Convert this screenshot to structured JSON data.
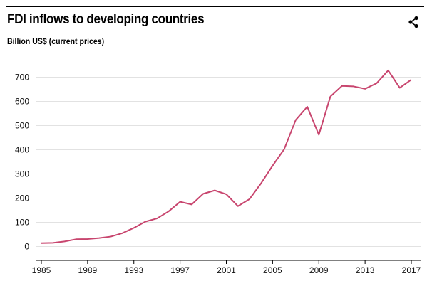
{
  "header": {
    "title": "FDI inflows to developing countries",
    "subtitle": "Billion US$ (current prices)",
    "share_icon": "share-icon"
  },
  "chart_data": {
    "type": "line",
    "title": "FDI inflows to developing countries",
    "ylabel": "Billion US$ (current prices)",
    "xlabel": "",
    "x_ticks": [
      "1985",
      "1989",
      "1993",
      "1997",
      "2001",
      "2005",
      "2009",
      "2013",
      "2017"
    ],
    "y_ticks": [
      "0",
      "100",
      "200",
      "300",
      "400",
      "500",
      "600",
      "700"
    ],
    "xlim": [
      1985,
      2017
    ],
    "ylim": [
      0,
      700
    ],
    "grid": "horizontal",
    "line_color": "#c8456e",
    "series": [
      {
        "x": [
          1985,
          1986,
          1987,
          1988,
          1989,
          1990,
          1991,
          1992,
          1993,
          1994,
          1995,
          1996,
          1997,
          1998,
          1999,
          2000,
          2001,
          2002,
          2003,
          2004,
          2005,
          2006,
          2007,
          2008,
          2009,
          2010,
          2011,
          2012,
          2013,
          2014,
          2015,
          2016,
          2017
        ],
        "values": [
          14,
          15,
          21,
          30,
          31,
          35,
          41,
          55,
          77,
          103,
          116,
          145,
          185,
          174,
          218,
          232,
          216,
          167,
          196,
          261,
          334,
          402,
          523,
          578,
          462,
          620,
          664,
          662,
          652,
          675,
          728,
          656,
          690
        ]
      }
    ]
  }
}
